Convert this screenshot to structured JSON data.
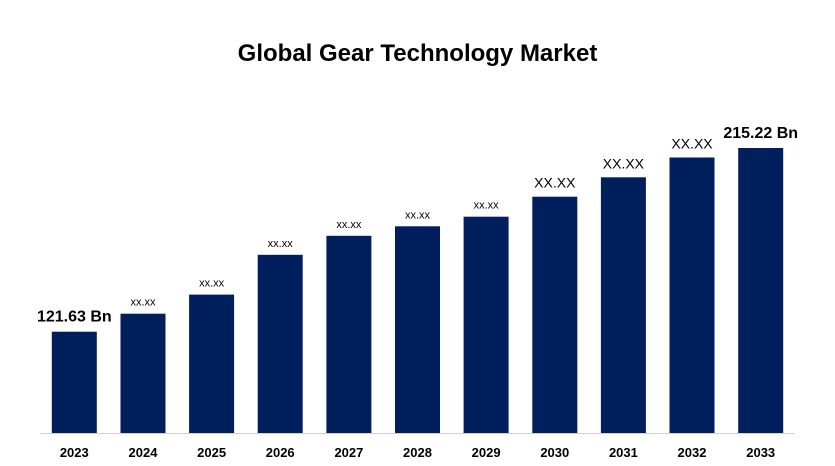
{
  "chart_data": {
    "type": "bar",
    "title": "Global Gear Technology Market",
    "categories": [
      "2023",
      "2024",
      "2025",
      "2026",
      "2027",
      "2028",
      "2029",
      "2030",
      "2031",
      "2032",
      "2033"
    ],
    "values": [
      121.63,
      130.8,
      140.5,
      160.8,
      170.5,
      175.3,
      180.2,
      190.4,
      200.3,
      210.4,
      215.22
    ],
    "data_labels": [
      "121.63 Bn",
      "xx.xx",
      "xx.xx",
      "xx.xx",
      "xx.xx",
      "xx.xx",
      "xx.xx",
      "XX.XX",
      "XX.XX",
      "XX.XX",
      "215.22 Bn"
    ],
    "xlabel": "",
    "ylabel": "",
    "ylim": [
      70,
      215.22
    ],
    "grid": false,
    "legend": "none",
    "bar_color": "#001f5c"
  }
}
